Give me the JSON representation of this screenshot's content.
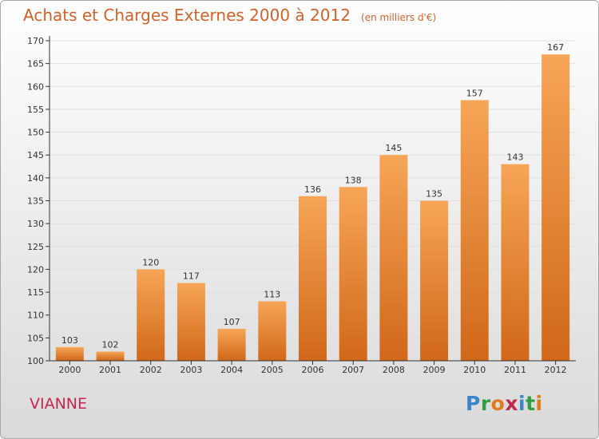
{
  "title": "Achats et Charges Externes 2000 à 2012",
  "subtitle": "(en milliers d'€)",
  "commune": "VIANNE",
  "logo": {
    "letters": [
      "P",
      "r",
      "o",
      "x",
      "i",
      "t",
      "i"
    ],
    "colors": [
      "#3a86c8",
      "#2f9e45",
      "#e07b1f",
      "#c0294d",
      "#3a86c8",
      "#2f9e45",
      "#e07b1f"
    ]
  },
  "colors": {
    "title": "#d0622a",
    "bar_top": "#f7a557",
    "bar_bottom": "#d06818",
    "axis": "#333333",
    "grid": "#e0e0e0",
    "commune": "#c0294d"
  },
  "chart_data": {
    "type": "bar",
    "title": "Achats et Charges Externes 2000 à 2012",
    "unit": "(en milliers d'€)",
    "categories": [
      "2000",
      "2001",
      "2002",
      "2003",
      "2004",
      "2005",
      "2006",
      "2007",
      "2008",
      "2009",
      "2010",
      "2011",
      "2012"
    ],
    "values": [
      103,
      102,
      120,
      117,
      107,
      113,
      136,
      138,
      145,
      135,
      157,
      143,
      167
    ],
    "ylim": [
      100,
      170
    ],
    "yticks": [
      100,
      105,
      110,
      115,
      120,
      125,
      130,
      135,
      140,
      145,
      150,
      155,
      160,
      165,
      170
    ],
    "grid": true,
    "data_labels": true
  }
}
